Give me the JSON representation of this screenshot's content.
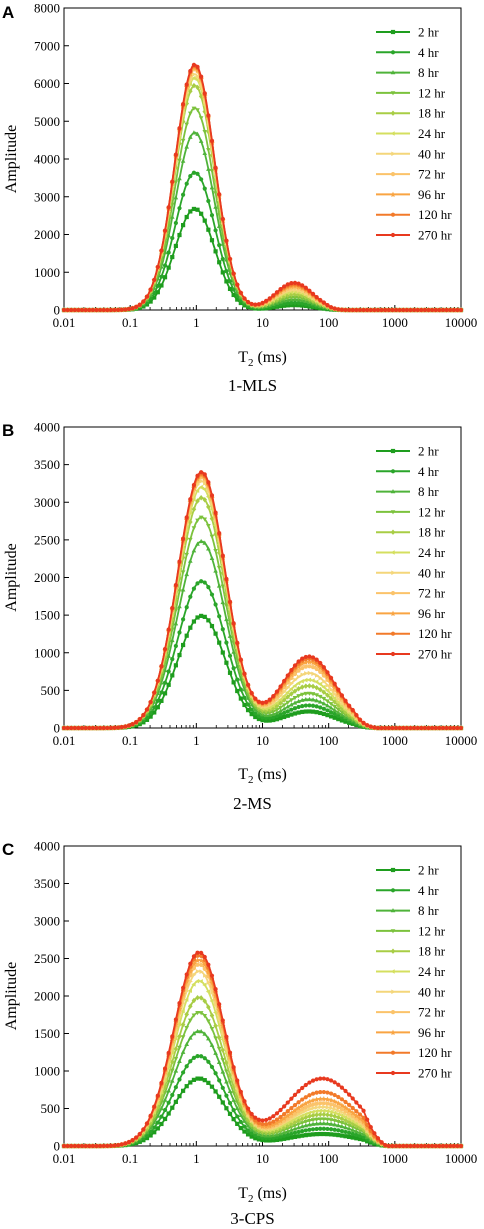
{
  "chart_data": [
    {
      "type": "line",
      "panel": "A",
      "caption": "1-MLS",
      "xlabel": "T2 (ms)",
      "xlabel_main": "T",
      "xlabel_sub": "2",
      "xlabel_unit": "(ms)",
      "ylabel": "Amplitude",
      "xscale": "log",
      "xlim": [
        0.01,
        10000
      ],
      "ylim": [
        0,
        8000
      ],
      "xticks": [
        "0.01",
        "0.1",
        "1",
        "10",
        "100",
        "1000",
        "10000"
      ],
      "yticks": [
        "0",
        "1000",
        "2000",
        "3000",
        "4000",
        "5000",
        "6000",
        "7000",
        "8000"
      ],
      "legend_position": "top-right",
      "shape": {
        "mu": 0.0,
        "sigma": 0.3,
        "shoulder_mu": 1.48,
        "shoulder_sigma": 0.28,
        "cut_left": 0.04,
        "cut_right": 200
      },
      "series": [
        {
          "name": "2 hr",
          "marker": "square",
          "color": "#1e9d1e",
          "peak_T2": 0.95,
          "peak": 2680,
          "shoulder_T2": 30,
          "shoulder": 130
        },
        {
          "name": "4 hr",
          "marker": "circle",
          "color": "#2aa52a",
          "peak_T2": 0.95,
          "peak": 3640,
          "shoulder_T2": 30,
          "shoulder": 190
        },
        {
          "name": "8 hr",
          "marker": "triangle-up",
          "color": "#4fb33a",
          "peak_T2": 0.95,
          "peak": 4700,
          "shoulder_T2": 30,
          "shoulder": 280
        },
        {
          "name": "12 hr",
          "marker": "triangle-down",
          "color": "#7cc23d",
          "peak_T2": 0.95,
          "peak": 5350,
          "shoulder_T2": 30,
          "shoulder": 340
        },
        {
          "name": "18 hr",
          "marker": "diamond",
          "color": "#a8cd45",
          "peak_T2": 0.95,
          "peak": 5950,
          "shoulder_T2": 30,
          "shoulder": 420
        },
        {
          "name": "24 hr",
          "marker": "triangle-left",
          "color": "#d4df5f",
          "peak_T2": 0.95,
          "peak": 6150,
          "shoulder_T2": 30,
          "shoulder": 480
        },
        {
          "name": "40 hr",
          "marker": "triangle-right",
          "color": "#f4d67a",
          "peak_T2": 0.95,
          "peak": 6250,
          "shoulder_T2": 30,
          "shoulder": 530
        },
        {
          "name": "72 hr",
          "marker": "hexagon",
          "color": "#fbc36a",
          "peak_T2": 0.95,
          "peak": 6380,
          "shoulder_T2": 30,
          "shoulder": 600
        },
        {
          "name": "96 hr",
          "marker": "star",
          "color": "#f9a442",
          "peak_T2": 0.95,
          "peak": 6430,
          "shoulder_T2": 30,
          "shoulder": 640
        },
        {
          "name": "120 hr",
          "marker": "pentagon",
          "color": "#f27a2a",
          "peak_T2": 0.95,
          "peak": 6470,
          "shoulder_T2": 30,
          "shoulder": 680
        },
        {
          "name": "270 hr",
          "marker": "circle",
          "color": "#e8391f",
          "peak_T2": 0.95,
          "peak": 6500,
          "shoulder_T2": 30,
          "shoulder": 720
        }
      ]
    },
    {
      "type": "line",
      "panel": "B",
      "caption": "2-MS",
      "xlabel": "T2 (ms)",
      "xlabel_main": "T",
      "xlabel_sub": "2",
      "xlabel_unit": "(ms)",
      "ylabel": "Amplitude",
      "xscale": "log",
      "xlim": [
        0.01,
        10000
      ],
      "ylim": [
        0,
        4000
      ],
      "xticks": [
        "0.01",
        "0.1",
        "1",
        "10",
        "100",
        "1000",
        "10000"
      ],
      "yticks": [
        "0",
        "500",
        "1000",
        "1500",
        "2000",
        "2500",
        "3000",
        "3500",
        "4000"
      ],
      "legend_position": "top-right",
      "shape": {
        "mu": 0.1,
        "sigma": 0.36,
        "shoulder_mu": 1.75,
        "shoulder_sigma": 0.4,
        "cut_left": 0.04,
        "cut_right": 550
      },
      "series": [
        {
          "name": "2 hr",
          "marker": "square",
          "color": "#1e9d1e",
          "peak_T2": 1.2,
          "peak": 1490,
          "shoulder_T2": 50,
          "shoulder": 220
        },
        {
          "name": "4 hr",
          "marker": "circle",
          "color": "#2aa52a",
          "peak_T2": 1.2,
          "peak": 1950,
          "shoulder_T2": 50,
          "shoulder": 300
        },
        {
          "name": "8 hr",
          "marker": "triangle-up",
          "color": "#4fb33a",
          "peak_T2": 1.2,
          "peak": 2480,
          "shoulder_T2": 50,
          "shoulder": 380
        },
        {
          "name": "12 hr",
          "marker": "triangle-down",
          "color": "#7cc23d",
          "peak_T2": 1.2,
          "peak": 2800,
          "shoulder_T2": 50,
          "shoulder": 460
        },
        {
          "name": "18 hr",
          "marker": "diamond",
          "color": "#a8cd45",
          "peak_T2": 1.2,
          "peak": 3060,
          "shoulder_T2": 50,
          "shoulder": 560
        },
        {
          "name": "24 hr",
          "marker": "triangle-left",
          "color": "#d4df5f",
          "peak_T2": 1.2,
          "peak": 3200,
          "shoulder_T2": 50,
          "shoulder": 640
        },
        {
          "name": "40 hr",
          "marker": "triangle-right",
          "color": "#f4d67a",
          "peak_T2": 1.2,
          "peak": 3280,
          "shoulder_T2": 50,
          "shoulder": 730
        },
        {
          "name": "72 hr",
          "marker": "hexagon",
          "color": "#fbc36a",
          "peak_T2": 1.2,
          "peak": 3330,
          "shoulder_T2": 50,
          "shoulder": 820
        },
        {
          "name": "96 hr",
          "marker": "star",
          "color": "#f9a442",
          "peak_T2": 1.2,
          "peak": 3360,
          "shoulder_T2": 50,
          "shoulder": 880
        },
        {
          "name": "120 hr",
          "marker": "pentagon",
          "color": "#f27a2a",
          "peak_T2": 1.2,
          "peak": 3380,
          "shoulder_T2": 50,
          "shoulder": 920
        },
        {
          "name": "270 hr",
          "marker": "circle",
          "color": "#e8391f",
          "peak_T2": 1.2,
          "peak": 3400,
          "shoulder_T2": 50,
          "shoulder": 950
        }
      ]
    },
    {
      "type": "line",
      "panel": "C",
      "caption": "3-CPS",
      "xlabel": "T2 (ms)",
      "xlabel_main": "T",
      "xlabel_sub": "2",
      "xlabel_unit": "(ms)",
      "ylabel": "Amplitude",
      "xscale": "log",
      "xlim": [
        0.01,
        10000
      ],
      "ylim": [
        0,
        4000
      ],
      "xticks": [
        "0.01",
        "0.1",
        "1",
        "10",
        "100",
        "1000",
        "10000"
      ],
      "yticks": [
        "0",
        "500",
        "1000",
        "1500",
        "2000",
        "2500",
        "3000",
        "3500",
        "4000"
      ],
      "legend_position": "top-right",
      "shape": {
        "mu": 0.05,
        "sigma": 0.38,
        "shoulder_mu": 1.9,
        "shoulder_sigma": 0.55,
        "cut_left": 0.04,
        "cut_right": 750
      },
      "series": [
        {
          "name": "2 hr",
          "marker": "square",
          "color": "#1e9d1e",
          "peak_T2": 1.1,
          "peak": 900,
          "shoulder_T2": 80,
          "shoulder": 160
        },
        {
          "name": "4 hr",
          "marker": "circle",
          "color": "#2aa52a",
          "peak_T2": 1.1,
          "peak": 1200,
          "shoulder_T2": 80,
          "shoulder": 230
        },
        {
          "name": "8 hr",
          "marker": "triangle-up",
          "color": "#4fb33a",
          "peak_T2": 1.1,
          "peak": 1530,
          "shoulder_T2": 80,
          "shoulder": 300
        },
        {
          "name": "12 hr",
          "marker": "triangle-down",
          "color": "#7cc23d",
          "peak_T2": 1.1,
          "peak": 1780,
          "shoulder_T2": 80,
          "shoulder": 360
        },
        {
          "name": "18 hr",
          "marker": "diamond",
          "color": "#a8cd45",
          "peak_T2": 1.1,
          "peak": 1980,
          "shoulder_T2": 80,
          "shoulder": 420
        },
        {
          "name": "24 hr",
          "marker": "triangle-left",
          "color": "#d4df5f",
          "peak_T2": 1.1,
          "peak": 2200,
          "shoulder_T2": 80,
          "shoulder": 470
        },
        {
          "name": "40 hr",
          "marker": "triangle-right",
          "color": "#f4d67a",
          "peak_T2": 1.1,
          "peak": 2330,
          "shoulder_T2": 80,
          "shoulder": 520
        },
        {
          "name": "72 hr",
          "marker": "hexagon",
          "color": "#fbc36a",
          "peak_T2": 1.1,
          "peak": 2420,
          "shoulder_T2": 80,
          "shoulder": 570
        },
        {
          "name": "96 hr",
          "marker": "star",
          "color": "#f9a442",
          "peak_T2": 1.1,
          "peak": 2480,
          "shoulder_T2": 80,
          "shoulder": 630
        },
        {
          "name": "120 hr",
          "marker": "pentagon",
          "color": "#f27a2a",
          "peak_T2": 1.1,
          "peak": 2540,
          "shoulder_T2": 80,
          "shoulder": 720
        },
        {
          "name": "270 hr",
          "marker": "circle",
          "color": "#e8391f",
          "peak_T2": 1.1,
          "peak": 2580,
          "shoulder_T2": 80,
          "shoulder": 900
        }
      ]
    }
  ]
}
